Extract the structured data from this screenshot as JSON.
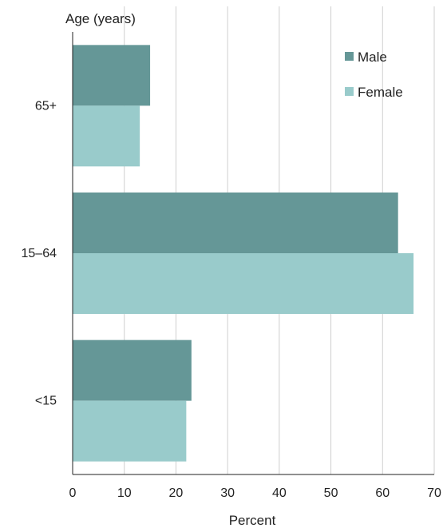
{
  "chart_data": {
    "type": "bar",
    "orientation": "horizontal",
    "ylabel": "Age (years)",
    "xlabel": "Percent",
    "categories": [
      "65+",
      "15–64",
      "<15"
    ],
    "x_ticks": [
      "0",
      "10",
      "20",
      "30",
      "40",
      "50",
      "60",
      "70"
    ],
    "xlim": [
      0,
      70
    ],
    "grid": "vertical",
    "legend_position": "top-right",
    "series": [
      {
        "name": "Male",
        "color": "#659797",
        "values": [
          15,
          63,
          23
        ]
      },
      {
        "name": "Female",
        "color": "#99cbcb",
        "values": [
          13,
          66,
          22
        ]
      }
    ]
  }
}
